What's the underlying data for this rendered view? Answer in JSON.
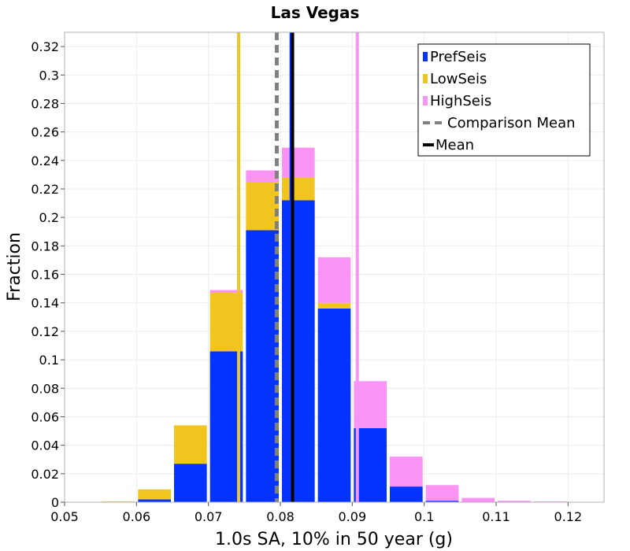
{
  "chart_data": {
    "type": "bar",
    "stacked": true,
    "title": "Las Vegas",
    "xlabel": "1.0s SA, 10% in 50 year (g)",
    "ylabel": "Fraction",
    "xlim": [
      0.05,
      0.125
    ],
    "ylim": [
      0,
      0.33
    ],
    "xticks": [
      0.05,
      0.06,
      0.07,
      0.08,
      0.09,
      0.1,
      0.11,
      0.12
    ],
    "xtick_labels": [
      "0.05",
      "0.06",
      "0.07",
      "0.08",
      "0.09",
      "0.1",
      "0.11",
      "0.12"
    ],
    "yticks": [
      0,
      0.02,
      0.04,
      0.06,
      0.08,
      0.1,
      0.12,
      0.14,
      0.16,
      0.18,
      0.2,
      0.22,
      0.24,
      0.26,
      0.28,
      0.3,
      0.32
    ],
    "ytick_labels": [
      "0",
      "0.02",
      "0.04",
      "0.06",
      "0.08",
      "0.1",
      "0.12",
      "0.14",
      "0.16",
      "0.18",
      "0.2",
      "0.22",
      "0.24",
      "0.26",
      "0.28",
      "0.3",
      "0.32"
    ],
    "bin_centers": [
      0.0575,
      0.0625,
      0.0675,
      0.0725,
      0.0775,
      0.0825,
      0.0875,
      0.0925,
      0.0975,
      0.1025,
      0.1075,
      0.1125,
      0.1175
    ],
    "bin_width": 0.005,
    "series": [
      {
        "name": "PrefSeis",
        "color": "#0433ff",
        "values": [
          0.0,
          0.002,
          0.027,
          0.106,
          0.191,
          0.212,
          0.136,
          0.052,
          0.011,
          0.001,
          0.0,
          0.0,
          0.0
        ]
      },
      {
        "name": "LowSeis",
        "color": "#f0c520",
        "values": [
          0.0005,
          0.007,
          0.027,
          0.041,
          0.034,
          0.016,
          0.004,
          0.0,
          0.0,
          0.0,
          0.0,
          0.0,
          0.0
        ]
      },
      {
        "name": "HighSeis",
        "color": "#f994f5",
        "values": [
          0.0,
          0.0,
          0.0,
          0.002,
          0.008,
          0.021,
          0.032,
          0.033,
          0.021,
          0.011,
          0.003,
          0.001,
          0.0005
        ]
      }
    ],
    "vertical_lines": [
      {
        "name": "LowSeis Mean",
        "x": 0.0742,
        "color": "#f0c520",
        "style": "solid",
        "in_legend": false
      },
      {
        "name": "PrefSeis Mean",
        "x": 0.0815,
        "color": "#0433ff",
        "style": "solid",
        "in_legend": false
      },
      {
        "name": "HighSeis Mean",
        "x": 0.0907,
        "color": "#f994f5",
        "style": "solid",
        "in_legend": false
      },
      {
        "name": "Comparison Mean",
        "x": 0.0795,
        "color": "#808080",
        "style": "dashed",
        "in_legend": true
      },
      {
        "name": "Mean",
        "x": 0.0817,
        "color": "#000000",
        "style": "solid",
        "in_legend": true
      }
    ],
    "legend": {
      "position": "top-right",
      "entries": [
        {
          "label": "PrefSeis",
          "kind": "box",
          "color": "#0433ff"
        },
        {
          "label": "LowSeis",
          "kind": "box",
          "color": "#f0c520"
        },
        {
          "label": "HighSeis",
          "kind": "box",
          "color": "#f994f5"
        },
        {
          "label": "Comparison Mean",
          "kind": "dashed",
          "color": "#808080"
        },
        {
          "label": "Mean",
          "kind": "line",
          "color": "#000000"
        }
      ]
    },
    "grid": true
  }
}
